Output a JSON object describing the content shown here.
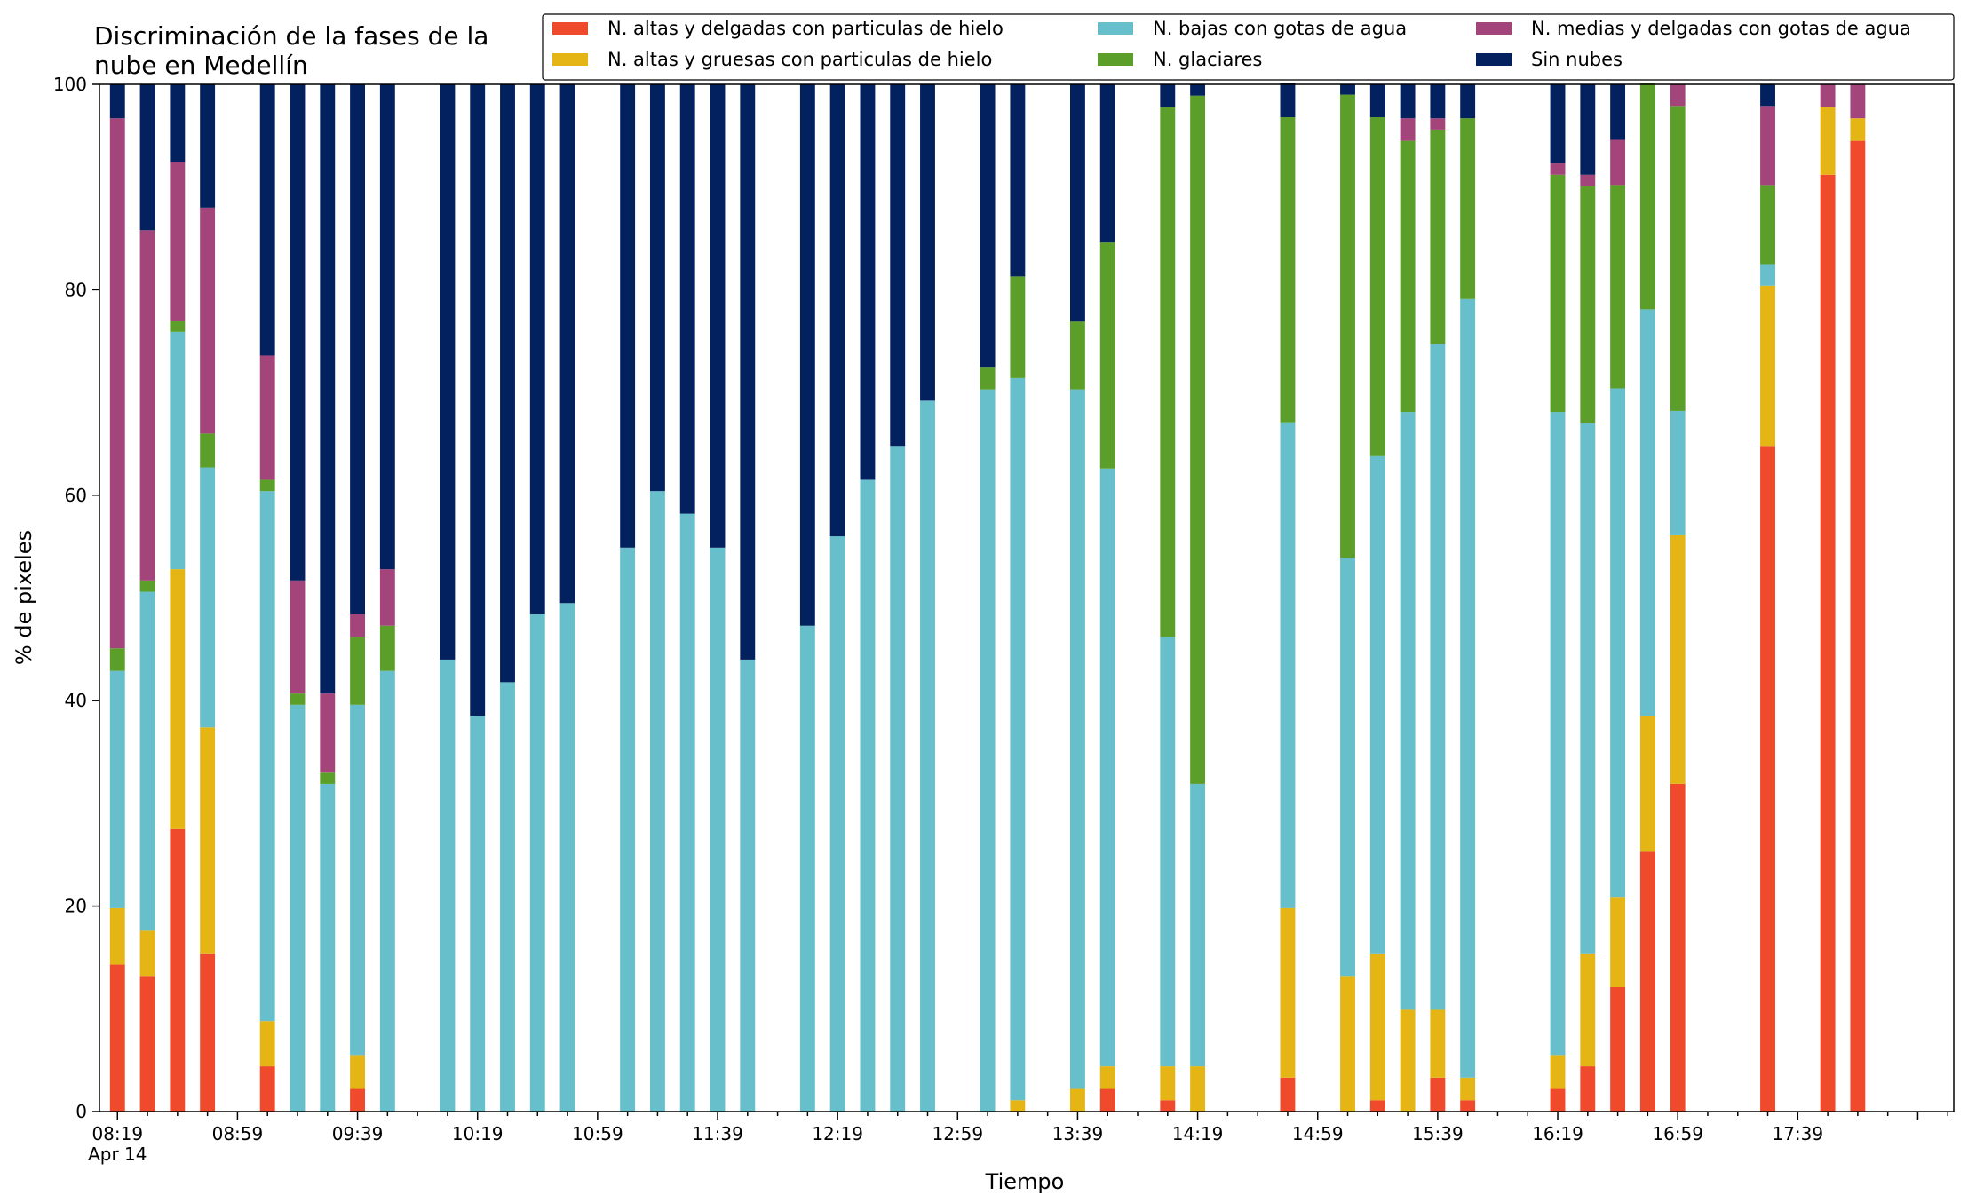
{
  "chart_data": {
    "type": "bar",
    "stacked": true,
    "title": "Discriminación de la fases de la\nnube en Medellín",
    "xlabel": "Tiempo",
    "ylabel": "% de pixeles",
    "ylim": [
      0,
      100
    ],
    "yticks": [
      0,
      20,
      40,
      60,
      80,
      100
    ],
    "grid": false,
    "legend_position": "top-right",
    "x_unit_minutes": 10,
    "xticks": [
      {
        "minute": 0,
        "label": "08:19",
        "sublabel": "Apr 14"
      },
      {
        "minute": 40,
        "label": "08:59"
      },
      {
        "minute": 80,
        "label": "09:39"
      },
      {
        "minute": 120,
        "label": "10:19"
      },
      {
        "minute": 160,
        "label": "10:59"
      },
      {
        "minute": 200,
        "label": "11:39"
      },
      {
        "minute": 240,
        "label": "12:19"
      },
      {
        "minute": 280,
        "label": "12:59"
      },
      {
        "minute": 320,
        "label": "13:39"
      },
      {
        "minute": 360,
        "label": "14:19"
      },
      {
        "minute": 400,
        "label": "14:59"
      },
      {
        "minute": 440,
        "label": "15:39"
      },
      {
        "minute": 480,
        "label": "16:19"
      },
      {
        "minute": 520,
        "label": "16:59"
      },
      {
        "minute": 560,
        "label": "17:39"
      }
    ],
    "x": [
      0,
      10,
      20,
      30,
      50,
      60,
      70,
      80,
      90,
      110,
      120,
      130,
      140,
      150,
      170,
      180,
      190,
      200,
      210,
      230,
      240,
      250,
      260,
      270,
      290,
      300,
      320,
      330,
      350,
      360,
      390,
      410,
      420,
      430,
      440,
      450,
      480,
      490,
      500,
      510,
      520,
      550,
      570,
      580
    ],
    "series": [
      {
        "name": "N. altas y delgadas con particulas de hielo",
        "color": "#ef4a2b",
        "values": [
          14.3,
          13.2,
          27.5,
          15.4,
          4.4,
          0,
          0,
          2.2,
          0,
          0,
          0,
          0,
          0,
          0,
          0,
          0,
          0,
          0,
          0,
          0,
          0,
          0,
          0,
          0,
          0,
          0,
          0,
          2.2,
          1.1,
          0,
          3.3,
          0,
          1.1,
          0,
          3.3,
          1.1,
          2.2,
          4.4,
          12.1,
          25.3,
          31.9,
          64.8,
          91.2,
          94.5
        ]
      },
      {
        "name": "N. altas y gruesas con particulas de hielo",
        "color": "#e5b516",
        "values": [
          5.5,
          4.4,
          25.3,
          22.0,
          4.4,
          0,
          0,
          3.3,
          0,
          0,
          0,
          0,
          0,
          0,
          0,
          0,
          0,
          0,
          0,
          0,
          0,
          0,
          0,
          0,
          0,
          1.1,
          2.2,
          2.2,
          3.3,
          4.4,
          16.5,
          13.2,
          14.3,
          9.9,
          6.6,
          2.2,
          3.3,
          11.0,
          8.8,
          13.2,
          24.2,
          15.6,
          6.6,
          2.2
        ]
      },
      {
        "name": "N. bajas con gotas de agua",
        "color": "#66bfca",
        "values": [
          23.1,
          33.0,
          23.1,
          25.3,
          51.6,
          39.6,
          31.9,
          34.1,
          42.9,
          44.0,
          38.5,
          41.8,
          48.4,
          49.5,
          54.9,
          60.4,
          58.2,
          54.9,
          44.0,
          47.3,
          56.0,
          61.5,
          64.8,
          69.2,
          70.3,
          70.3,
          68.1,
          58.2,
          41.8,
          27.5,
          47.3,
          40.7,
          48.4,
          58.2,
          64.8,
          75.8,
          62.6,
          51.6,
          49.5,
          39.6,
          12.1,
          2.1,
          0,
          0
        ]
      },
      {
        "name": "N. glaciares",
        "color": "#5c9e2a",
        "values": [
          2.2,
          1.1,
          1.1,
          3.3,
          1.1,
          1.1,
          1.1,
          6.6,
          4.4,
          0,
          0,
          0,
          0,
          0,
          0,
          0,
          0,
          0,
          0,
          0,
          0,
          0,
          0,
          0,
          2.2,
          9.9,
          6.6,
          22.0,
          51.6,
          67.0,
          29.7,
          45.1,
          33.0,
          26.4,
          20.9,
          17.6,
          23.1,
          23.1,
          19.8,
          22.0,
          29.7,
          7.7,
          0,
          0
        ]
      },
      {
        "name": "N. medias y delgadas con gotas de agua",
        "color": "#a3457a",
        "values": [
          51.6,
          34.1,
          15.4,
          22.0,
          12.1,
          11.0,
          7.7,
          2.2,
          5.5,
          0,
          0,
          0,
          0,
          0,
          0,
          0,
          0,
          0,
          0,
          0,
          0,
          0,
          0,
          0,
          0,
          0,
          0,
          0,
          0,
          0,
          0,
          0,
          0,
          2.2,
          1.1,
          0,
          1.1,
          1.1,
          4.4,
          0,
          2.1,
          7.7,
          2.2,
          3.3
        ]
      },
      {
        "name": "Sin nubes",
        "color": "#03215e",
        "values": [
          3.3,
          14.2,
          7.6,
          12.0,
          26.4,
          48.3,
          59.3,
          51.6,
          47.2,
          56.0,
          61.5,
          58.2,
          51.6,
          50.5,
          45.1,
          39.6,
          41.8,
          45.1,
          56.0,
          52.7,
          44.0,
          38.5,
          35.2,
          30.8,
          27.5,
          18.7,
          23.1,
          15.4,
          2.2,
          1.1,
          3.3,
          1.0,
          3.2,
          3.3,
          3.3,
          3.3,
          7.7,
          8.8,
          5.4,
          0,
          0,
          2.1,
          0,
          0
        ]
      }
    ]
  }
}
